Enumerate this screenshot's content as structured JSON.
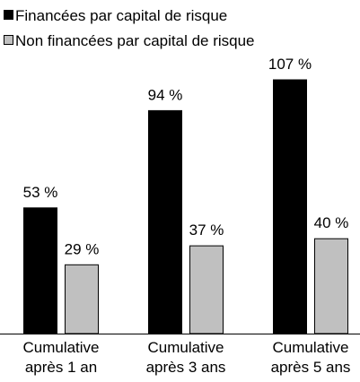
{
  "chart_data": {
    "type": "bar",
    "categories": [
      "Cumulative après 1 an",
      "Cumulative après 3 ans",
      "Cumulative après 5 ans"
    ],
    "series": [
      {
        "name": "Financées par capital de risque",
        "color": "#000000",
        "values": [
          53,
          94,
          107
        ],
        "value_labels": [
          "53 %",
          "94 %",
          "107 %"
        ]
      },
      {
        "name": "Non financées par capital de risque",
        "color": "#c0c0c0",
        "values": [
          29,
          37,
          40
        ],
        "value_labels": [
          "29 %",
          "37 %",
          "40 %"
        ]
      }
    ],
    "legend": "top-left"
  }
}
